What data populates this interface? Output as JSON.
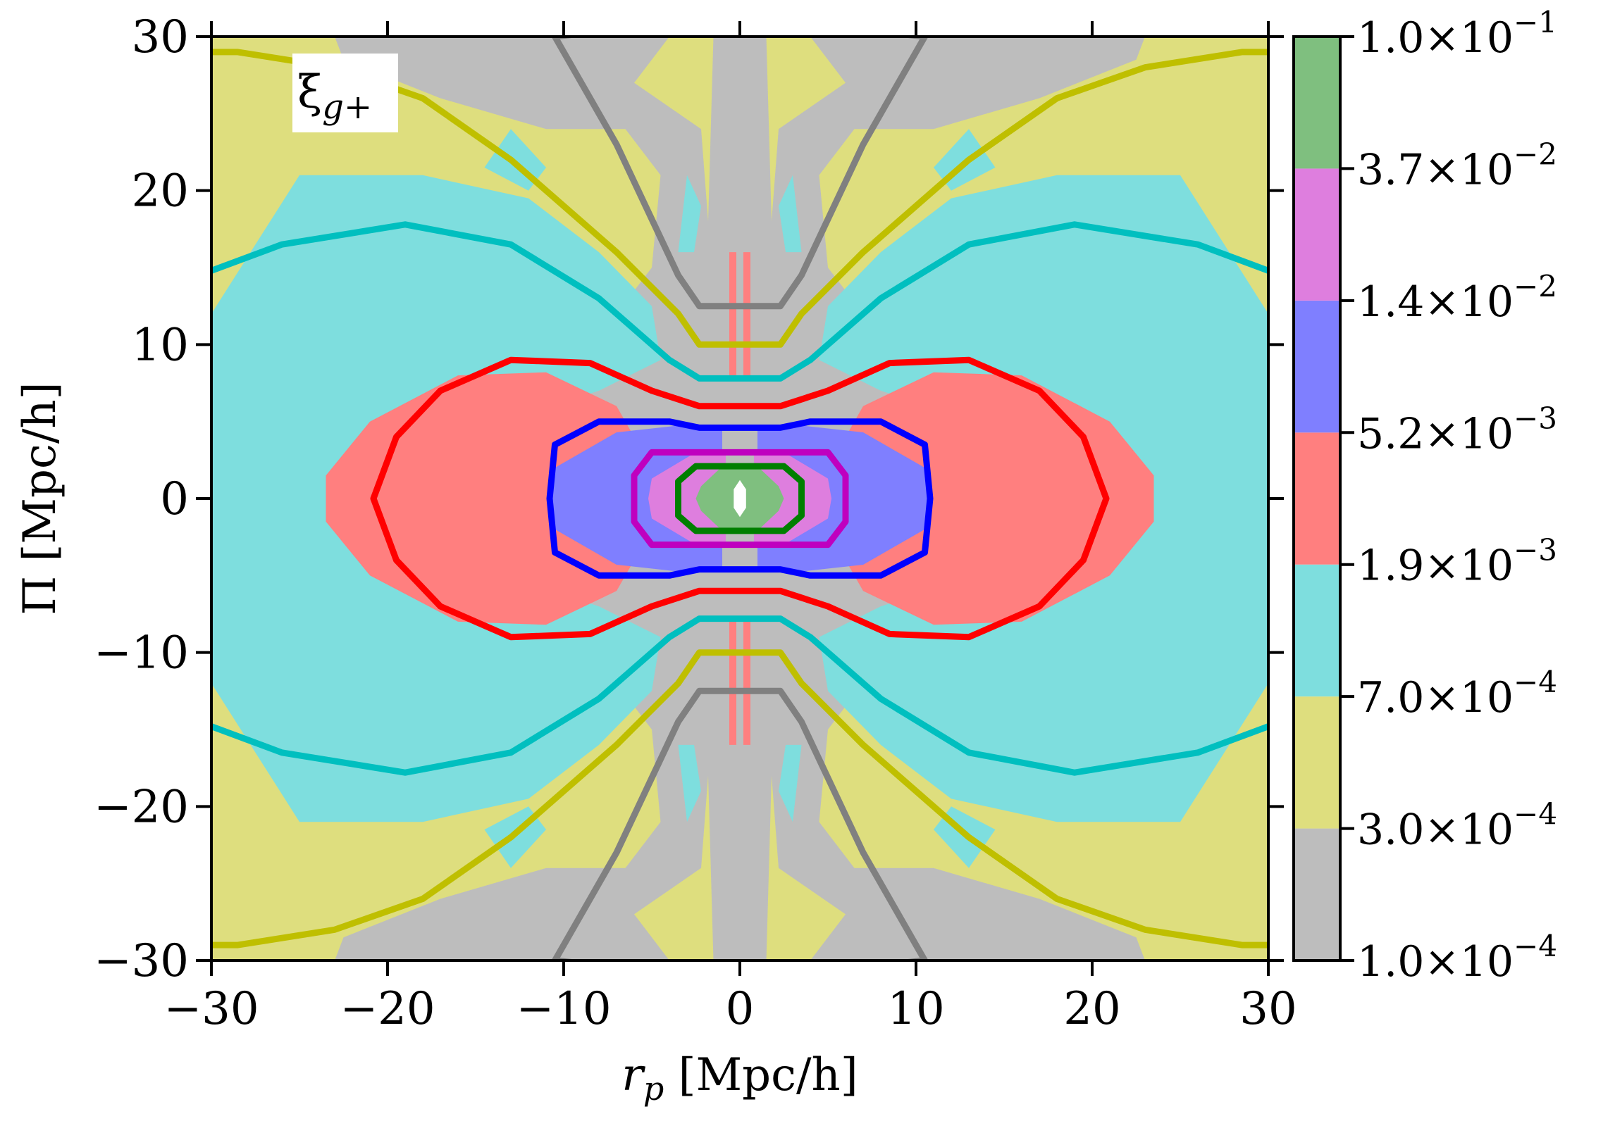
{
  "chart_data": {
    "type": "contour",
    "inset_label": {
      "symbol": "ξ",
      "subscript": "g+"
    },
    "xlabel": {
      "var": "r",
      "sub": "p",
      "unit": " [Mpc/h]"
    },
    "ylabel": "Π [Mpc/h]",
    "xlim": [
      -30,
      30
    ],
    "ylim": [
      -30,
      30
    ],
    "xticks": [
      -30,
      -20,
      -10,
      0,
      10,
      20,
      30
    ],
    "yticks": [
      -30,
      -20,
      -10,
      0,
      10,
      20,
      30
    ],
    "xtick_labels": [
      "−30",
      "−20",
      "−10",
      "0",
      "10",
      "20",
      "30"
    ],
    "ytick_labels": [
      "−30",
      "−20",
      "−10",
      "0",
      "10",
      "20",
      "30"
    ],
    "colorbar": {
      "levels": [
        0.0001,
        0.0003,
        0.0007,
        0.0019,
        0.0052,
        0.014,
        0.037,
        0.1
      ],
      "labels": [
        {
          "mant": "1.0",
          "exp": "−4"
        },
        {
          "mant": "3.0",
          "exp": "−4"
        },
        {
          "mant": "7.0",
          "exp": "−4"
        },
        {
          "mant": "1.9",
          "exp": "−3"
        },
        {
          "mant": "5.2",
          "exp": "−3"
        },
        {
          "mant": "1.4",
          "exp": "−2"
        },
        {
          "mant": "3.7",
          "exp": "−2"
        },
        {
          "mant": "1.0",
          "exp": "−1"
        }
      ],
      "colors": [
        "#bdbdbd",
        "#dede7e",
        "#7edede",
        "#ff7f7f",
        "#7f7fff",
        "#de7ede",
        "#7fbf7f"
      ]
    },
    "filled_contours": [
      {
        "level_index": 0,
        "color": "#bdbdbd"
      },
      {
        "level_index": 1,
        "color": "#dede7e"
      },
      {
        "level_index": 2,
        "color": "#7edede"
      },
      {
        "level_index": 3,
        "color": "#ff7f7f"
      },
      {
        "level_index": 4,
        "color": "#7f7fff"
      },
      {
        "level_index": 5,
        "color": "#de7ede"
      },
      {
        "level_index": 6,
        "color": "#7fbf7f"
      }
    ],
    "line_contours": [
      {
        "color": "#808080",
        "level": 0.0001,
        "points": [
          [
            2.3,
            31
          ],
          [
            10.5,
            30
          ],
          [
            7,
            23
          ],
          [
            3.5,
            14.5
          ],
          [
            2.3,
            12.5
          ],
          [
            -2.3,
            12.5
          ],
          [
            -3.5,
            14.5
          ],
          [
            -7,
            23
          ],
          [
            -10.5,
            30
          ],
          [
            -2.3,
            31
          ]
        ]
      },
      {
        "color": "#bfbf00",
        "level": 0.0003,
        "points": [
          [
            30,
            29
          ],
          [
            28.5,
            29
          ],
          [
            23,
            28
          ],
          [
            18,
            26
          ],
          [
            13,
            22
          ],
          [
            7,
            16
          ],
          [
            3.5,
            12
          ],
          [
            2.3,
            10
          ],
          [
            -2.3,
            10
          ],
          [
            -3.5,
            12
          ],
          [
            -7,
            16
          ],
          [
            -13,
            22
          ],
          [
            -18,
            26
          ],
          [
            -23,
            28
          ],
          [
            -28.5,
            29
          ],
          [
            -30,
            29
          ]
        ]
      },
      {
        "color": "#00bfbf",
        "level": 0.0007,
        "points": [
          [
            30,
            14.8
          ],
          [
            26,
            16.5
          ],
          [
            19,
            17.8
          ],
          [
            13,
            16.5
          ],
          [
            8,
            13
          ],
          [
            4,
            9
          ],
          [
            2.3,
            7.8
          ],
          [
            -2.3,
            7.8
          ],
          [
            -4,
            9
          ],
          [
            -8,
            13
          ],
          [
            -13,
            16.5
          ],
          [
            -19,
            17.8
          ],
          [
            -26,
            16.5
          ],
          [
            -30,
            14.8
          ]
        ]
      },
      {
        "color": "#ff0000",
        "level": 0.0019,
        "points": [
          [
            2.3,
            6
          ],
          [
            5,
            7
          ],
          [
            8.5,
            8.8
          ],
          [
            13,
            9
          ],
          [
            17,
            7
          ],
          [
            19.5,
            4
          ],
          [
            20.8,
            0
          ],
          [
            19.5,
            -4
          ],
          [
            17,
            -7
          ],
          [
            13,
            -9
          ],
          [
            8.5,
            -8.8
          ],
          [
            5,
            -7
          ],
          [
            2.3,
            -6
          ],
          [
            -2.3,
            -6
          ],
          [
            -5,
            -7
          ],
          [
            -8.5,
            -8.8
          ],
          [
            -13,
            -9
          ],
          [
            -17,
            -7
          ],
          [
            -19.5,
            -4
          ],
          [
            -20.8,
            0
          ],
          [
            -19.5,
            4
          ],
          [
            -17,
            7
          ],
          [
            -13,
            9
          ],
          [
            -8.5,
            8.8
          ],
          [
            -5,
            7
          ],
          [
            -2.3,
            6
          ]
        ]
      },
      {
        "color": "#0000ff",
        "level": 0.0052,
        "points": [
          [
            2.3,
            4.6
          ],
          [
            4,
            5
          ],
          [
            8,
            5
          ],
          [
            10.5,
            3.5
          ],
          [
            10.8,
            0
          ],
          [
            10.5,
            -3.5
          ],
          [
            8,
            -5
          ],
          [
            4,
            -5
          ],
          [
            2.3,
            -4.6
          ],
          [
            -2.3,
            -4.6
          ],
          [
            -4,
            -5
          ],
          [
            -8,
            -5
          ],
          [
            -10.5,
            -3.5
          ],
          [
            -10.8,
            0
          ],
          [
            -10.5,
            3.5
          ],
          [
            -8,
            5
          ],
          [
            -4,
            5
          ],
          [
            -2.3,
            4.6
          ]
        ]
      },
      {
        "color": "#bf00bf",
        "level": 0.014,
        "points": [
          [
            -5,
            3
          ],
          [
            5,
            3
          ],
          [
            6,
            1.5
          ],
          [
            6,
            -1.5
          ],
          [
            5,
            -3
          ],
          [
            -5,
            -3
          ],
          [
            -6,
            -1.5
          ],
          [
            -6,
            1.5
          ]
        ]
      },
      {
        "color": "#007f00",
        "level": 0.037,
        "points": [
          [
            -2.5,
            2.1
          ],
          [
            2.5,
            2.1
          ],
          [
            3.5,
            1.1
          ],
          [
            3.5,
            -1.1
          ],
          [
            2.5,
            -2.1
          ],
          [
            -2.5,
            -2.1
          ],
          [
            -3.5,
            -1.1
          ],
          [
            -3.5,
            1.1
          ]
        ]
      }
    ]
  }
}
